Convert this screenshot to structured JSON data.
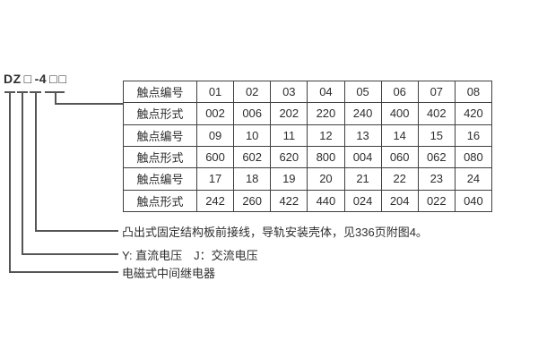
{
  "model": {
    "segments": [
      "DZ",
      "□",
      "-4",
      "□□"
    ]
  },
  "table": {
    "rows": [
      {
        "header": "触点编号",
        "cells": [
          "01",
          "02",
          "03",
          "04",
          "05",
          "06",
          "07",
          "08"
        ]
      },
      {
        "header": "触点形式",
        "cells": [
          "002",
          "006",
          "202",
          "220",
          "240",
          "400",
          "402",
          "420"
        ]
      },
      {
        "header": "触点编号",
        "cells": [
          "09",
          "10",
          "11",
          "12",
          "13",
          "14",
          "15",
          "16"
        ]
      },
      {
        "header": "触点形式",
        "cells": [
          "600",
          "602",
          "620",
          "800",
          "004",
          "060",
          "062",
          "080"
        ]
      },
      {
        "header": "触点编号",
        "cells": [
          "17",
          "18",
          "19",
          "20",
          "21",
          "22",
          "23",
          "24"
        ]
      },
      {
        "header": "触点形式",
        "cells": [
          "242",
          "260",
          "422",
          "440",
          "024",
          "204",
          "022",
          "040"
        ]
      }
    ]
  },
  "callouts": {
    "mounting": "凸出式固定结构板前接线，导轨安装壳体，见336页附图4。",
    "voltage": "Y: 直流电压　J：交流电压",
    "relay_type": "电磁式中间继电器"
  },
  "colors": {
    "background": "#ffffff",
    "text": "#2e2e2e",
    "border": "#3f3f3f",
    "callout_line": "#555555"
  }
}
